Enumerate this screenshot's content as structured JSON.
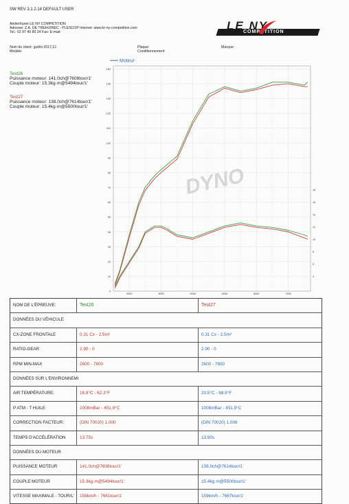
{
  "header": {
    "version": "SW REV 3.1.2.14   DEFAULT USER",
    "company_line": "Atelier/tuner:LE NY COMPETITION",
    "address_line": "Adresse: Z.A. DE TREHUINEC - PLESCOP Internet: www.le-ny-competition.com",
    "phone_line": "Tel.: 02 97 40 80 24 Fax:  E-mail:",
    "client_label": "Nom du client: guilloi 2017,12",
    "model_label": "Modèle:",
    "plate_label": "Plaque:",
    "driver_label": "Conditionnement:",
    "brand_label": "Marque:"
  },
  "logo": {
    "text": "LE NY",
    "subtext": "COMPETITION"
  },
  "legend": {
    "chart_legend": "Moteur",
    "test1": {
      "name": "Test26",
      "power": "Puissance moteur: 141.0ch@7608tour/1'",
      "torque": "Couple moteur: 15.3kg·m@5494tour/1'"
    },
    "test2": {
      "name": "Test27",
      "power": "Puissance moteur: 138.0ch@7614tour/1'",
      "torque": "Couple moteur: 15.4kg·m@5500tour/1'"
    }
  },
  "colors": {
    "test1": "#3f9a4a",
    "test2": "#c44040",
    "legend_blue": "#2d6bb5",
    "grid": "#b9b9b9"
  },
  "chart_data": {
    "type": "line",
    "watermark": "DYNO",
    "x_ticks": [
      2000,
      3000,
      4000,
      5000,
      6000,
      7000
    ],
    "y_ticks": [
      "0",
      "10",
      "20",
      "30",
      "40",
      "50",
      "60",
      "70",
      "80",
      "90",
      "100",
      "110",
      "120",
      "130",
      "140",
      "150"
    ],
    "xlim": [
      1500,
      7700
    ],
    "ylim": [
      0,
      152
    ],
    "right_ticks": [
      "4",
      "6",
      "8",
      "10",
      "12",
      "14",
      "16",
      "18"
    ],
    "series": [
      {
        "name": "Test26",
        "color": "#3f9a4a",
        "x": [
          1550,
          1700,
          2000,
          2300,
          2500,
          2800,
          3000,
          3500,
          4000,
          4500,
          5000,
          5500,
          6000,
          6500,
          7000,
          7500,
          7608
        ],
        "values": [
          5,
          14,
          38,
          60,
          70,
          78,
          82,
          91,
          115,
          133,
          138,
          135,
          137,
          141,
          141,
          139,
          141
        ]
      },
      {
        "name": "Test27",
        "color": "#c44040",
        "x": [
          1550,
          1700,
          2000,
          2300,
          2500,
          2800,
          3000,
          3500,
          4000,
          4500,
          5000,
          5500,
          6000,
          6500,
          7000,
          7500,
          7614
        ],
        "values": [
          4,
          13,
          36,
          58,
          68,
          76,
          80,
          89,
          113,
          131,
          137,
          134,
          136,
          139,
          140,
          138,
          138
        ]
      },
      {
        "name": "Test26",
        "color": "#3f9a4a",
        "x": [
          1550,
          1700,
          2000,
          2300,
          2500,
          2800,
          3000,
          3200,
          3500,
          4000,
          4500,
          5000,
          5500,
          6000,
          6500,
          7000,
          7500,
          7608
        ],
        "values": [
          3,
          10,
          20,
          30,
          40,
          44,
          44,
          42,
          38,
          36,
          40,
          44,
          46,
          44,
          43,
          41,
          38,
          37
        ]
      },
      {
        "name": "Test27",
        "color": "#c44040",
        "x": [
          1550,
          1700,
          2000,
          2300,
          2500,
          2800,
          3000,
          3200,
          3500,
          4000,
          4500,
          5000,
          5500,
          6000,
          6500,
          7000,
          7500,
          7614
        ],
        "values": [
          2,
          9,
          19,
          29,
          39,
          43,
          43,
          41,
          37,
          35,
          39,
          43,
          45,
          43,
          42,
          40,
          36,
          35
        ]
      }
    ]
  },
  "table": {
    "col_event": "NOM DE L'ÉPREUVE:",
    "col_test1": "Test26",
    "col_test2": "Test27",
    "rows": [
      {
        "type": "section",
        "label": "DONNÉES DU VÉHICULE"
      },
      {
        "type": "data",
        "label": "CX-ZONE FRONTALE",
        "v1": "0.31 Cx - 2.5m²",
        "v2": "0.31 Cx - 2.5m²"
      },
      {
        "type": "data",
        "label": "RATIO-GEAR",
        "v1": "2.90 - 0",
        "v2": "2.90 - 0"
      },
      {
        "type": "data",
        "label": "RPM MIN-MAX",
        "v1": "2600 - 7600",
        "v2": "2600 - 7600"
      },
      {
        "type": "section",
        "label": "DONNÉES SUR L'ENVIRONNEMI"
      },
      {
        "type": "data",
        "label": "AIR TEMPÉRATURE:",
        "v1": "16.8°C - 62.3°F",
        "v2": "20.5°C - 68.9°F"
      },
      {
        "type": "data",
        "label": "P ATM - T HUILE",
        "v1": "1008mBar - 451.9°C",
        "v2": "1008mBar - 451.9°C"
      },
      {
        "type": "data",
        "label": "CORRECTION FACTEUR:",
        "v1": "(DIN 70020) 1.000",
        "v2": "(DIN 70020) 1.006"
      },
      {
        "type": "data",
        "label": "TEMPS D'ACCÉLÉRATION",
        "v1": "13.75s",
        "v2": "13.90s"
      },
      {
        "type": "section",
        "label": "DONNÉES DU MOTEUR"
      },
      {
        "type": "data",
        "label": "PUISSANCE MOTEUR",
        "v1": "141.0ch@7608tour/1'",
        "v2": "138.0ch@7614tour/1'"
      },
      {
        "type": "data",
        "label": "COUPLE MOTEUR",
        "v1": "15.3kg·m@5494tour/1'",
        "v2": "15.4kg·m@5500tour/1'"
      },
      {
        "type": "data",
        "label": "VITESSE MAXIMALE - TOUR/L'",
        "v1": "158km/h - 7661tour/1'",
        "v2": "159km/h - 7667tour/1'"
      }
    ]
  }
}
